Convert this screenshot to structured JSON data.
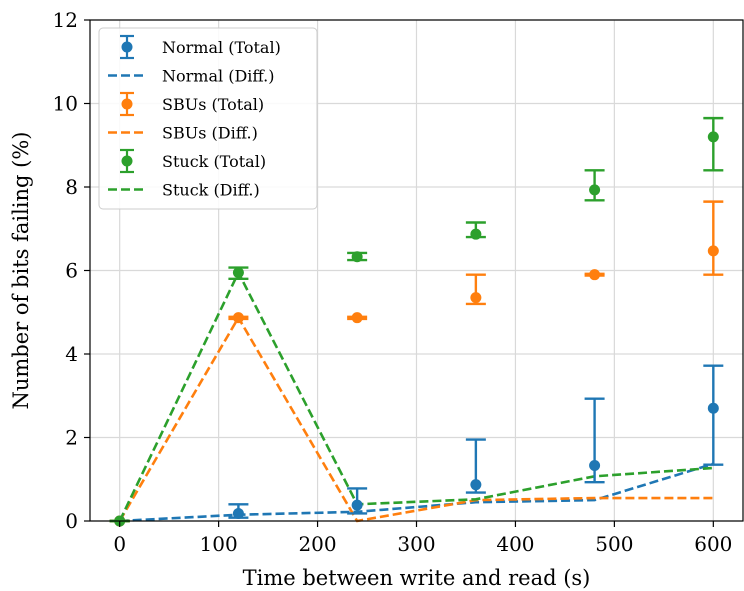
{
  "chart_data": {
    "type": "scatter",
    "xlabel": "Time between write and read (s)",
    "ylabel": "Number of bits failing (%)",
    "xlim": [
      -30,
      630
    ],
    "ylim": [
      0,
      12
    ],
    "xticks": [
      0,
      100,
      200,
      300,
      400,
      500,
      600
    ],
    "yticks": [
      0,
      2,
      4,
      6,
      8,
      10,
      12
    ],
    "xtick_labels": [
      "0",
      "100",
      "200",
      "300",
      "400",
      "500",
      "600"
    ],
    "ytick_labels": [
      "0",
      "2",
      "4",
      "6",
      "8",
      "10",
      "12"
    ],
    "grid": true,
    "legend_position": "top-left",
    "series": [
      {
        "name": "Normal (Total)",
        "kind": "errorbar",
        "color": "#1f77b4",
        "x": [
          0,
          120,
          240,
          360,
          480,
          600
        ],
        "y": [
          0.0,
          0.18,
          0.38,
          0.87,
          1.33,
          2.7
        ],
        "err_low": [
          0.0,
          0.08,
          0.18,
          0.68,
          0.93,
          1.35
        ],
        "err_high": [
          0.0,
          0.4,
          0.78,
          1.95,
          2.93,
          3.72
        ]
      },
      {
        "name": "Normal (Diff.)",
        "kind": "dashed-line",
        "color": "#1f77b4",
        "x": [
          0,
          120,
          240,
          360,
          480,
          600
        ],
        "y": [
          0.0,
          0.15,
          0.22,
          0.45,
          0.5,
          1.37
        ]
      },
      {
        "name": "SBUs (Total)",
        "kind": "errorbar",
        "color": "#ff7f0e",
        "x": [
          0,
          120,
          240,
          360,
          480,
          600
        ],
        "y": [
          0.0,
          4.87,
          4.87,
          5.35,
          5.9,
          6.47
        ],
        "err_low": [
          0.0,
          4.84,
          4.84,
          5.2,
          5.88,
          5.9
        ],
        "err_high": [
          0.0,
          4.89,
          4.89,
          5.9,
          5.92,
          7.65
        ]
      },
      {
        "name": "SBUs (Diff.)",
        "kind": "dashed-line",
        "color": "#ff7f0e",
        "x": [
          0,
          120,
          240,
          360,
          480,
          600
        ],
        "y": [
          0.0,
          4.87,
          0.0,
          0.5,
          0.55,
          0.55
        ]
      },
      {
        "name": "Stuck (Total)",
        "kind": "errorbar",
        "color": "#2ca02c",
        "x": [
          0,
          120,
          240,
          360,
          480,
          600
        ],
        "y": [
          0.0,
          5.95,
          6.33,
          6.87,
          7.93,
          9.2
        ],
        "err_low": [
          0.0,
          5.8,
          6.25,
          6.8,
          7.68,
          8.4
        ],
        "err_high": [
          0.0,
          6.07,
          6.42,
          7.15,
          8.4,
          9.65
        ]
      },
      {
        "name": "Stuck (Diff.)",
        "kind": "dashed-line",
        "color": "#2ca02c",
        "x": [
          0,
          120,
          240,
          360,
          480,
          600
        ],
        "y": [
          0.0,
          5.95,
          0.4,
          0.52,
          1.07,
          1.27
        ]
      }
    ]
  }
}
